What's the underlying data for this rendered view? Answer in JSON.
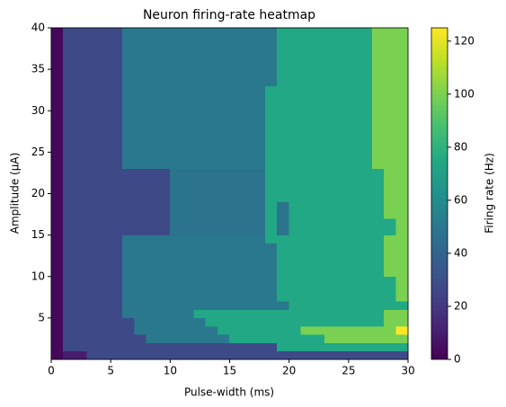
{
  "chart_data": {
    "type": "heatmap",
    "title": "Neuron firing-rate heatmap",
    "xlabel": "Pulse-width (ms)",
    "ylabel": "Amplitude (μA)",
    "colorbar_label": "Firing rate (Hz)",
    "colormap": "viridis",
    "clim": [
      0,
      125
    ],
    "cticks": [
      0,
      20,
      40,
      60,
      80,
      100,
      120
    ],
    "xlim": [
      0,
      30
    ],
    "ylim": [
      0,
      40
    ],
    "xticks": [
      0,
      5,
      10,
      15,
      20,
      25,
      30
    ],
    "yticks": [
      5,
      10,
      15,
      20,
      25,
      30,
      35,
      40
    ],
    "x_edges": [
      0,
      1,
      2,
      3,
      4,
      5,
      6,
      7,
      8,
      9,
      10,
      11,
      12,
      13,
      14,
      15,
      16,
      17,
      18,
      19,
      20,
      21,
      22,
      23,
      24,
      25,
      26,
      27,
      28,
      29,
      30
    ],
    "y_edges": [
      0,
      1,
      2,
      3,
      4,
      5,
      6,
      7,
      8,
      9,
      10,
      11,
      12,
      13,
      14,
      15,
      16,
      17,
      18,
      19,
      20,
      21,
      22,
      23,
      24,
      25,
      26,
      27,
      28,
      29,
      30,
      31,
      32,
      33,
      34,
      35,
      36,
      37,
      38,
      39,
      40
    ],
    "z": [
      [
        3,
        10,
        10,
        28,
        28,
        28,
        28,
        28,
        28,
        28,
        28,
        28,
        28,
        28,
        28,
        28,
        28,
        28,
        28,
        28,
        28,
        28,
        28,
        28,
        28,
        28,
        28,
        28,
        28,
        28
      ],
      [
        3,
        28,
        28,
        28,
        28,
        28,
        28,
        28,
        28,
        28,
        28,
        28,
        28,
        28,
        28,
        28,
        28,
        28,
        28,
        75,
        75,
        75,
        75,
        75,
        75,
        75,
        75,
        75,
        75,
        75
      ],
      [
        3,
        28,
        28,
        28,
        28,
        28,
        28,
        28,
        50,
        50,
        50,
        50,
        50,
        50,
        50,
        75,
        75,
        75,
        75,
        75,
        75,
        75,
        75,
        100,
        100,
        100,
        100,
        100,
        100,
        100
      ],
      [
        3,
        28,
        28,
        28,
        28,
        28,
        28,
        50,
        50,
        50,
        50,
        50,
        50,
        50,
        75,
        75,
        75,
        75,
        75,
        75,
        75,
        100,
        100,
        100,
        100,
        100,
        100,
        100,
        100,
        125
      ],
      [
        3,
        28,
        28,
        28,
        28,
        28,
        28,
        50,
        50,
        50,
        50,
        50,
        50,
        75,
        75,
        75,
        75,
        75,
        75,
        75,
        75,
        75,
        75,
        75,
        75,
        75,
        75,
        75,
        100,
        100
      ],
      [
        3,
        28,
        28,
        28,
        28,
        28,
        50,
        50,
        50,
        50,
        50,
        50,
        75,
        75,
        75,
        75,
        75,
        75,
        75,
        75,
        75,
        75,
        75,
        75,
        75,
        75,
        75,
        75,
        100,
        100
      ],
      [
        3,
        28,
        28,
        28,
        28,
        28,
        50,
        50,
        50,
        50,
        50,
        50,
        50,
        50,
        50,
        50,
        50,
        50,
        50,
        50,
        75,
        75,
        75,
        75,
        75,
        75,
        75,
        75,
        75,
        75
      ],
      [
        3,
        28,
        28,
        28,
        28,
        28,
        50,
        50,
        50,
        50,
        50,
        50,
        50,
        50,
        50,
        50,
        50,
        50,
        50,
        75,
        75,
        75,
        75,
        75,
        75,
        75,
        75,
        75,
        75,
        100
      ],
      [
        3,
        28,
        28,
        28,
        28,
        28,
        50,
        50,
        50,
        50,
        50,
        50,
        50,
        50,
        50,
        50,
        50,
        50,
        50,
        75,
        75,
        75,
        75,
        75,
        75,
        75,
        75,
        75,
        75,
        100
      ],
      [
        3,
        28,
        28,
        28,
        28,
        28,
        50,
        50,
        50,
        50,
        50,
        50,
        50,
        50,
        50,
        50,
        50,
        50,
        50,
        75,
        75,
        75,
        75,
        75,
        75,
        75,
        75,
        75,
        75,
        100
      ],
      [
        3,
        28,
        28,
        28,
        28,
        28,
        50,
        50,
        50,
        50,
        50,
        50,
        50,
        50,
        50,
        50,
        50,
        50,
        50,
        75,
        75,
        75,
        75,
        75,
        75,
        75,
        75,
        75,
        100,
        100
      ],
      [
        3,
        28,
        28,
        28,
        28,
        28,
        50,
        50,
        50,
        50,
        50,
        50,
        50,
        50,
        50,
        50,
        50,
        50,
        50,
        75,
        75,
        75,
        75,
        75,
        75,
        75,
        75,
        75,
        100,
        100
      ],
      [
        3,
        28,
        28,
        28,
        28,
        28,
        50,
        50,
        50,
        50,
        50,
        50,
        50,
        50,
        50,
        50,
        50,
        50,
        50,
        75,
        75,
        75,
        75,
        75,
        75,
        75,
        75,
        75,
        100,
        100
      ],
      [
        3,
        28,
        28,
        28,
        28,
        28,
        50,
        50,
        50,
        50,
        50,
        50,
        50,
        50,
        50,
        50,
        50,
        50,
        50,
        75,
        75,
        75,
        75,
        75,
        75,
        75,
        75,
        75,
        100,
        100
      ],
      [
        3,
        28,
        28,
        28,
        28,
        28,
        50,
        50,
        50,
        50,
        50,
        50,
        50,
        50,
        50,
        50,
        50,
        50,
        75,
        75,
        75,
        75,
        75,
        75,
        75,
        75,
        75,
        75,
        100,
        100
      ],
      [
        3,
        28,
        28,
        28,
        28,
        28,
        28,
        28,
        28,
        28,
        48,
        48,
        48,
        48,
        48,
        48,
        48,
        48,
        75,
        48,
        75,
        75,
        75,
        75,
        75,
        75,
        75,
        75,
        75,
        100
      ],
      [
        3,
        28,
        28,
        28,
        28,
        28,
        28,
        28,
        28,
        28,
        48,
        48,
        48,
        48,
        48,
        48,
        48,
        48,
        75,
        48,
        75,
        75,
        75,
        75,
        75,
        75,
        75,
        75,
        75,
        100
      ],
      [
        3,
        28,
        28,
        28,
        28,
        28,
        28,
        28,
        28,
        28,
        48,
        48,
        48,
        48,
        48,
        48,
        48,
        48,
        75,
        48,
        75,
        75,
        75,
        75,
        75,
        75,
        75,
        75,
        100,
        100
      ],
      [
        3,
        28,
        28,
        28,
        28,
        28,
        28,
        28,
        28,
        28,
        48,
        48,
        48,
        48,
        48,
        48,
        48,
        48,
        75,
        48,
        75,
        75,
        75,
        75,
        75,
        75,
        75,
        75,
        100,
        100
      ],
      [
        3,
        28,
        28,
        28,
        28,
        28,
        28,
        28,
        28,
        28,
        48,
        48,
        48,
        48,
        48,
        48,
        48,
        48,
        75,
        75,
        75,
        75,
        75,
        75,
        75,
        75,
        75,
        75,
        100,
        100
      ],
      [
        3,
        28,
        28,
        28,
        28,
        28,
        28,
        28,
        28,
        28,
        48,
        48,
        48,
        48,
        48,
        48,
        48,
        48,
        75,
        75,
        75,
        75,
        75,
        75,
        75,
        75,
        75,
        75,
        100,
        100
      ],
      [
        3,
        28,
        28,
        28,
        28,
        28,
        28,
        28,
        28,
        28,
        48,
        48,
        48,
        48,
        48,
        48,
        48,
        48,
        75,
        75,
        75,
        75,
        75,
        75,
        75,
        75,
        75,
        75,
        100,
        100
      ],
      [
        3,
        28,
        28,
        28,
        28,
        28,
        28,
        28,
        28,
        28,
        48,
        48,
        48,
        48,
        48,
        48,
        48,
        48,
        75,
        75,
        75,
        75,
        75,
        75,
        75,
        75,
        75,
        75,
        100,
        100
      ],
      [
        3,
        28,
        28,
        28,
        28,
        28,
        50,
        50,
        50,
        50,
        50,
        50,
        50,
        50,
        50,
        50,
        50,
        50,
        75,
        75,
        75,
        75,
        75,
        75,
        75,
        75,
        75,
        100,
        100,
        100
      ],
      [
        3,
        28,
        28,
        28,
        28,
        28,
        50,
        50,
        50,
        50,
        50,
        50,
        50,
        50,
        50,
        50,
        50,
        50,
        75,
        75,
        75,
        75,
        75,
        75,
        75,
        75,
        75,
        100,
        100,
        100
      ],
      [
        3,
        28,
        28,
        28,
        28,
        28,
        50,
        50,
        50,
        50,
        50,
        50,
        50,
        50,
        50,
        50,
        50,
        50,
        75,
        75,
        75,
        75,
        75,
        75,
        75,
        75,
        75,
        100,
        100,
        100
      ],
      [
        3,
        28,
        28,
        28,
        28,
        28,
        50,
        50,
        50,
        50,
        50,
        50,
        50,
        50,
        50,
        50,
        50,
        50,
        75,
        75,
        75,
        75,
        75,
        75,
        75,
        75,
        75,
        100,
        100,
        100
      ],
      [
        3,
        28,
        28,
        28,
        28,
        28,
        50,
        50,
        50,
        50,
        50,
        50,
        50,
        50,
        50,
        50,
        50,
        50,
        75,
        75,
        75,
        75,
        75,
        75,
        75,
        75,
        75,
        100,
        100,
        100
      ],
      [
        3,
        28,
        28,
        28,
        28,
        28,
        50,
        50,
        50,
        50,
        50,
        50,
        50,
        50,
        50,
        50,
        50,
        50,
        75,
        75,
        75,
        75,
        75,
        75,
        75,
        75,
        75,
        100,
        100,
        100
      ],
      [
        3,
        28,
        28,
        28,
        28,
        28,
        50,
        50,
        50,
        50,
        50,
        50,
        50,
        50,
        50,
        50,
        50,
        50,
        75,
        75,
        75,
        75,
        75,
        75,
        75,
        75,
        75,
        100,
        100,
        100
      ],
      [
        3,
        28,
        28,
        28,
        28,
        28,
        50,
        50,
        50,
        50,
        50,
        50,
        50,
        50,
        50,
        50,
        50,
        50,
        75,
        75,
        75,
        75,
        75,
        75,
        75,
        75,
        75,
        100,
        100,
        100
      ],
      [
        3,
        28,
        28,
        28,
        28,
        28,
        50,
        50,
        50,
        50,
        50,
        50,
        50,
        50,
        50,
        50,
        50,
        50,
        75,
        75,
        75,
        75,
        75,
        75,
        75,
        75,
        75,
        100,
        100,
        100
      ],
      [
        3,
        28,
        28,
        28,
        28,
        28,
        50,
        50,
        50,
        50,
        50,
        50,
        50,
        50,
        50,
        50,
        50,
        50,
        75,
        75,
        75,
        75,
        75,
        75,
        75,
        75,
        75,
        100,
        100,
        100
      ],
      [
        3,
        28,
        28,
        28,
        28,
        28,
        50,
        50,
        50,
        50,
        50,
        50,
        50,
        50,
        50,
        50,
        50,
        50,
        50,
        75,
        75,
        75,
        75,
        75,
        75,
        75,
        75,
        100,
        100,
        100
      ],
      [
        3,
        28,
        28,
        28,
        28,
        28,
        50,
        50,
        50,
        50,
        50,
        50,
        50,
        50,
        50,
        50,
        50,
        50,
        50,
        75,
        75,
        75,
        75,
        75,
        75,
        75,
        75,
        100,
        100,
        100
      ],
      [
        3,
        28,
        28,
        28,
        28,
        28,
        50,
        50,
        50,
        50,
        50,
        50,
        50,
        50,
        50,
        50,
        50,
        50,
        50,
        75,
        75,
        75,
        75,
        75,
        75,
        75,
        75,
        100,
        100,
        100
      ],
      [
        3,
        28,
        28,
        28,
        28,
        28,
        50,
        50,
        50,
        50,
        50,
        50,
        50,
        50,
        50,
        50,
        50,
        50,
        50,
        75,
        75,
        75,
        75,
        75,
        75,
        75,
        75,
        100,
        100,
        100
      ],
      [
        3,
        28,
        28,
        28,
        28,
        28,
        50,
        50,
        50,
        50,
        50,
        50,
        50,
        50,
        50,
        50,
        50,
        50,
        50,
        75,
        75,
        75,
        75,
        75,
        75,
        75,
        75,
        100,
        100,
        100
      ],
      [
        3,
        28,
        28,
        28,
        28,
        28,
        50,
        50,
        50,
        50,
        50,
        50,
        50,
        50,
        50,
        50,
        50,
        50,
        50,
        75,
        75,
        75,
        75,
        75,
        75,
        75,
        75,
        100,
        100,
        100
      ],
      [
        3,
        28,
        28,
        28,
        28,
        28,
        50,
        50,
        50,
        50,
        50,
        50,
        50,
        50,
        50,
        50,
        50,
        50,
        50,
        75,
        75,
        75,
        75,
        75,
        75,
        75,
        75,
        100,
        100,
        100
      ]
    ]
  }
}
